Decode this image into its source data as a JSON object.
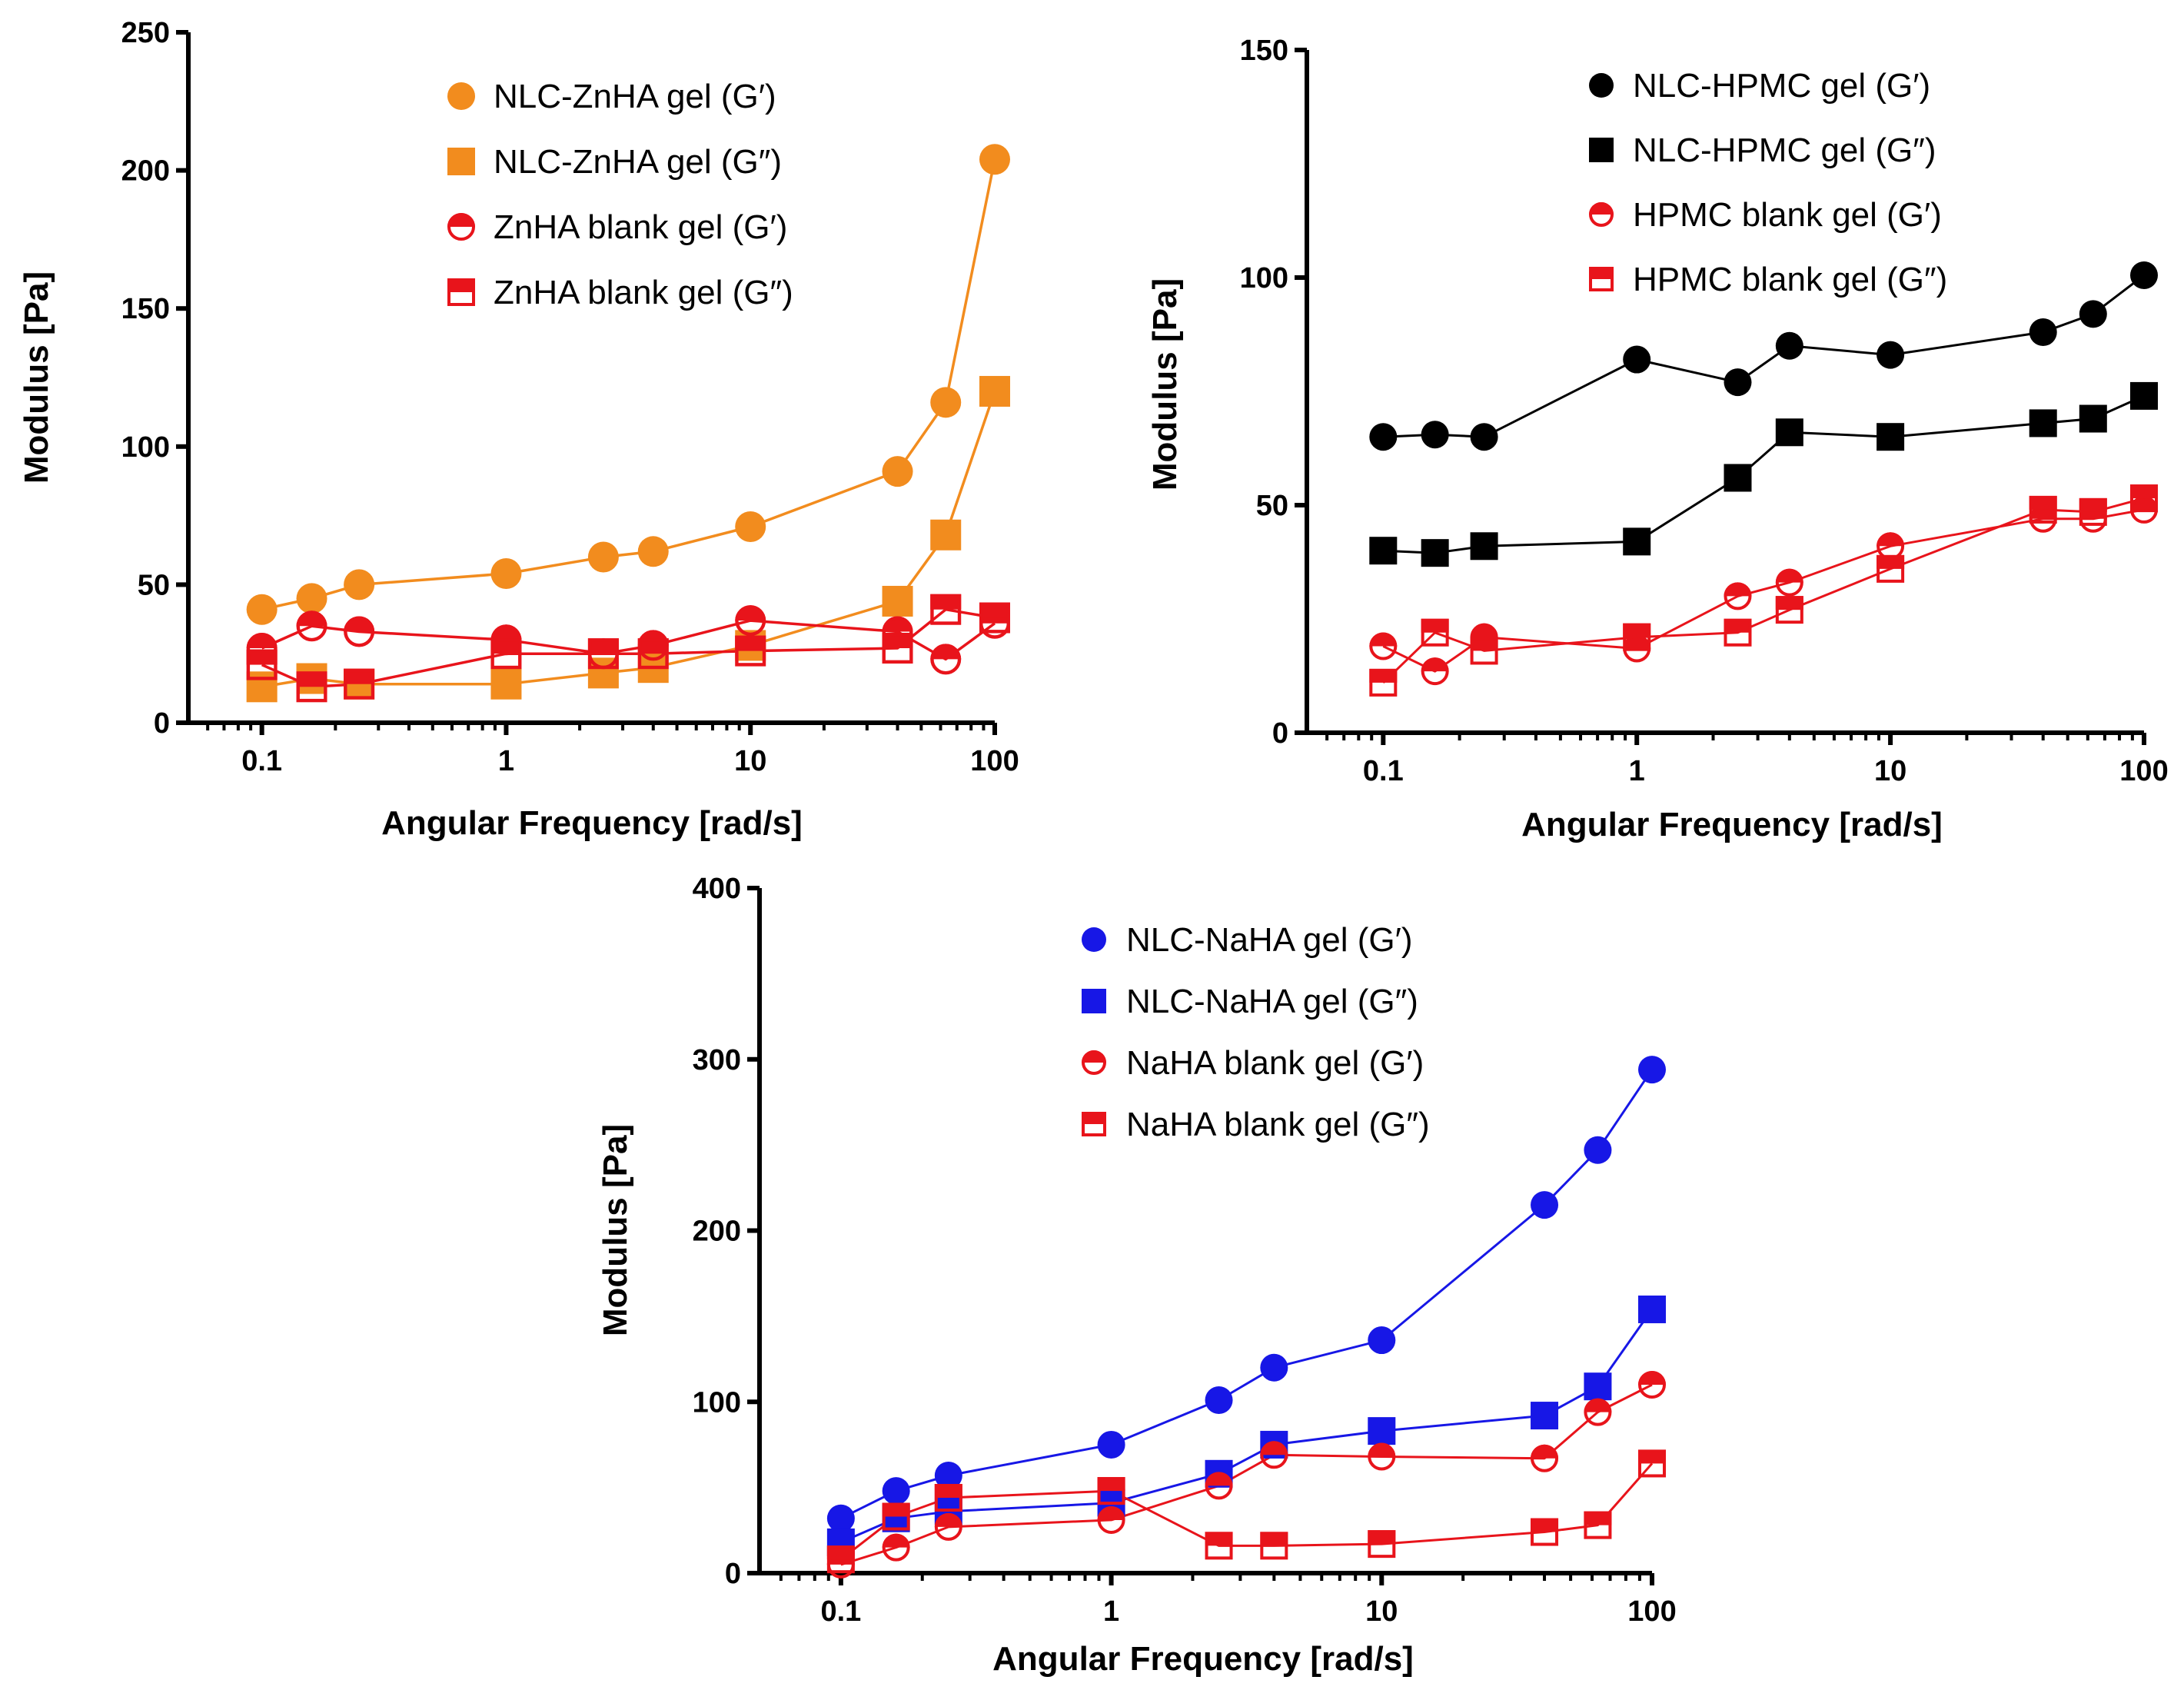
{
  "chart_data": [
    {
      "id": "zinc",
      "type": "line",
      "xscale": "log",
      "xlabel": "Angular Frequency [rad/s]",
      "ylabel": "Modulus [Pa]",
      "xlim": [
        0.05,
        100
      ],
      "ylim": [
        0,
        250
      ],
      "xticks": [
        0.1,
        1,
        10,
        100
      ],
      "xtick_labels": [
        "0.1",
        "1",
        "10",
        "100"
      ],
      "yticks": [
        0,
        50,
        100,
        150,
        200,
        250
      ],
      "ytick_labels": [
        "0",
        "50",
        "100",
        "150",
        "200",
        "250"
      ],
      "legend_position": "top-center",
      "x": [
        0.1,
        0.16,
        0.25,
        1,
        2.5,
        4,
        10,
        40,
        63,
        100
      ],
      "series": [
        {
          "name": "NLC-ZnHA gel (G′)",
          "color": "#f28c1e",
          "marker": "circle",
          "values": [
            41,
            45,
            50,
            54,
            60,
            62,
            71,
            91,
            116,
            204
          ]
        },
        {
          "name": "NLC-ZnHA gel (G″)",
          "color": "#f28c1e",
          "marker": "square",
          "values": [
            13,
            16,
            14,
            14,
            18,
            20,
            28,
            44,
            68,
            120
          ]
        },
        {
          "name": "ZnHA blank gel (G′)",
          "color": "#e8141b",
          "marker": "half-circle",
          "values": [
            27,
            35,
            33,
            30,
            25,
            28,
            37,
            33,
            23,
            36
          ]
        },
        {
          "name": "ZnHA blank gel (G″)",
          "color": "#e8141b",
          "marker": "half-square",
          "values": [
            21,
            13,
            14,
            25,
            25,
            25,
            26,
            27,
            41,
            38
          ]
        }
      ]
    },
    {
      "id": "hpmc",
      "type": "line",
      "xscale": "log",
      "xlabel": "Angular Frequency [rad/s]",
      "ylabel": "Modulus [Pa]",
      "xlim": [
        0.05,
        100
      ],
      "ylim": [
        0,
        150
      ],
      "xticks": [
        0.1,
        1,
        10,
        100
      ],
      "xtick_labels": [
        "0.1",
        "1",
        "10",
        "100"
      ],
      "yticks": [
        0,
        50,
        100,
        150
      ],
      "ytick_labels": [
        "0",
        "50",
        "100",
        "150"
      ],
      "legend_position": "top-center",
      "x": [
        0.1,
        0.16,
        0.25,
        1,
        2.5,
        4,
        10,
        40,
        63,
        100
      ],
      "series": [
        {
          "name": "NLC-HPMC gel (G′)",
          "color": "#000000",
          "marker": "circle",
          "values": [
            65,
            65.5,
            65,
            82,
            77,
            85,
            83,
            88,
            92,
            100.5
          ]
        },
        {
          "name": "NLC-HPMC gel (G″)",
          "color": "#000000",
          "marker": "square",
          "values": [
            40,
            39.5,
            41,
            42,
            56,
            66,
            65,
            68,
            69,
            74
          ]
        },
        {
          "name": "HPMC blank gel (G′)",
          "color": "#e8141b",
          "marker": "half-circle",
          "values": [
            19,
            13.5,
            21,
            18.5,
            30,
            33,
            41,
            47,
            47,
            49
          ]
        },
        {
          "name": "HPMC blank gel (G″)",
          "color": "#e8141b",
          "marker": "half-square",
          "values": [
            11,
            22,
            18,
            21,
            22,
            27,
            36,
            49,
            48.5,
            51.5
          ]
        }
      ]
    },
    {
      "id": "sodium",
      "type": "line",
      "xscale": "log",
      "xlabel": "Angular Frequency [rad/s]",
      "ylabel": "Modulus [Pa]",
      "xlim": [
        0.05,
        100
      ],
      "ylim": [
        0,
        400
      ],
      "xticks": [
        0.1,
        1,
        10,
        100
      ],
      "xtick_labels": [
        "0.1",
        "1",
        "10",
        "100"
      ],
      "yticks": [
        0,
        100,
        200,
        300,
        400
      ],
      "ytick_labels": [
        "0",
        "100",
        "200",
        "300",
        "400"
      ],
      "legend_position": "top-center",
      "x": [
        0.1,
        0.16,
        0.25,
        1,
        2.5,
        4,
        10,
        40,
        63,
        100
      ],
      "series": [
        {
          "name": "NLC-NaHA gel (G′)",
          "color": "#1717e6",
          "marker": "circle",
          "values": [
            32,
            48,
            57,
            75,
            101,
            120,
            136,
            215,
            247,
            294
          ]
        },
        {
          "name": "NLC-NaHA gel (G″)",
          "color": "#1717e6",
          "marker": "square",
          "values": [
            18,
            32,
            36,
            41,
            58,
            75,
            83,
            92,
            109,
            154
          ]
        },
        {
          "name": "NaHA blank gel (G′)",
          "color": "#e8141b",
          "marker": "half-circle",
          "values": [
            5,
            15,
            27,
            31,
            51,
            69,
            68,
            67,
            94,
            110
          ]
        },
        {
          "name": "NaHA blank gel (G″)",
          "color": "#e8141b",
          "marker": "half-square",
          "values": [
            8,
            33,
            44,
            48,
            16,
            16,
            17,
            24,
            28,
            64
          ]
        }
      ]
    }
  ]
}
